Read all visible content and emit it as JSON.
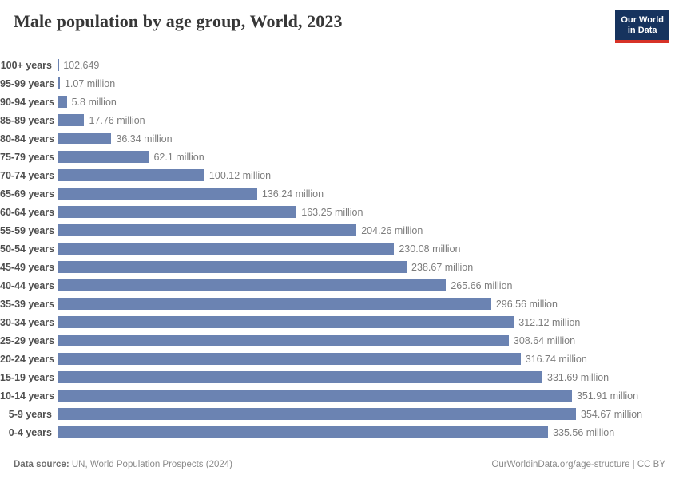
{
  "header": {
    "title": "Male population by age group, World, 2023",
    "logo": {
      "line1": "Our World",
      "line2": "in Data",
      "bg_color": "#16335e",
      "accent_color": "#d73227"
    }
  },
  "chart_data": {
    "type": "bar",
    "orientation": "horizontal",
    "title": "Male population by age group, World, 2023",
    "xlabel": "",
    "ylabel": "",
    "unit": "people",
    "grid": false,
    "legend": "none",
    "xlim_millions": [
      0,
      354.67
    ],
    "max_value_millions": 354.67,
    "bar_color": "#6b83b2",
    "axis_line_color": "#d9d9d9",
    "categories": [
      "100+ years",
      "95-99 years",
      "90-94 years",
      "85-89 years",
      "80-84 years",
      "75-79 years",
      "70-74 years",
      "65-69 years",
      "60-64 years",
      "55-59 years",
      "50-54 years",
      "45-49 years",
      "40-44 years",
      "35-39 years",
      "30-34 years",
      "25-29 years",
      "20-24 years",
      "15-19 years",
      "10-14 years",
      "5-9 years",
      "0-4 years"
    ],
    "values_millions": [
      0.102649,
      1.07,
      5.8,
      17.76,
      36.34,
      62.1,
      100.12,
      136.24,
      163.25,
      204.26,
      230.08,
      238.67,
      265.66,
      296.56,
      312.12,
      308.64,
      316.74,
      331.69,
      351.91,
      354.67,
      335.56
    ],
    "value_labels": [
      "102,649",
      "1.07 million",
      "5.8 million",
      "17.76 million",
      "36.34 million",
      "62.1 million",
      "100.12 million",
      "136.24 million",
      "163.25 million",
      "204.26 million",
      "230.08 million",
      "238.67 million",
      "265.66 million",
      "296.56 million",
      "312.12 million",
      "308.64 million",
      "316.74 million",
      "331.69 million",
      "351.91 million",
      "354.67 million",
      "335.56 million"
    ]
  },
  "footer": {
    "source_label": "Data source:",
    "source_text": " UN, World Population Prospects (2024)",
    "right_text": "OurWorldinData.org/age-structure | CC BY"
  }
}
